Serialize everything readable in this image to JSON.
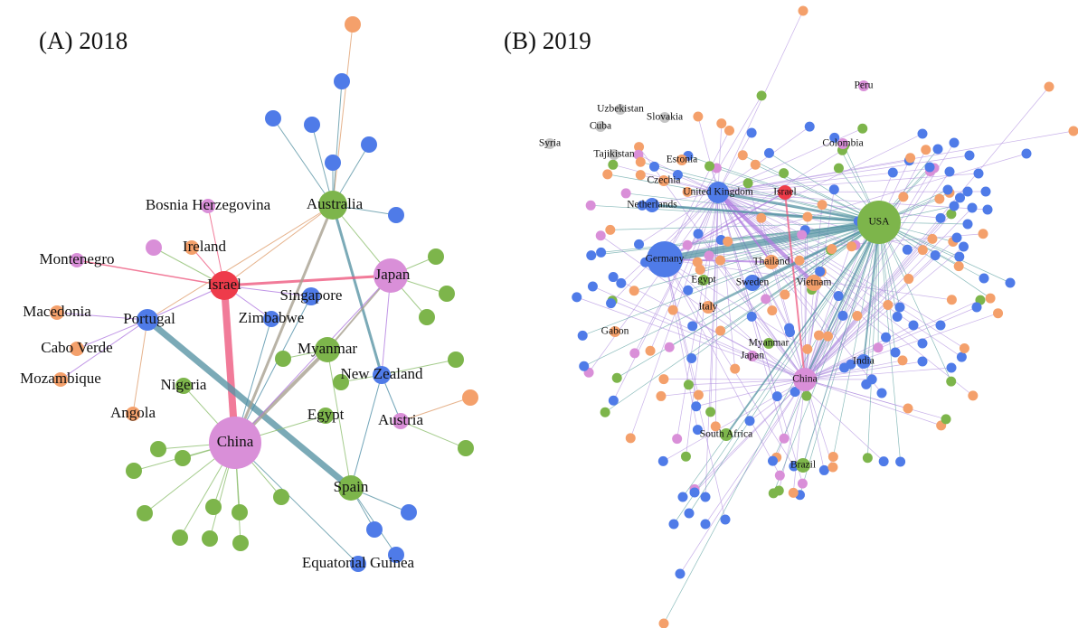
{
  "panels": [
    {
      "title": "(A) 2018",
      "nodes": [
        {
          "label": "Australia"
        },
        {
          "label": "Bosnia Herzegovina"
        },
        {
          "label": "Ireland"
        },
        {
          "label": "Montenegro"
        },
        {
          "label": "Israel"
        },
        {
          "label": "Japan"
        },
        {
          "label": "Singapore"
        },
        {
          "label": "Macedonia"
        },
        {
          "label": "Portugal"
        },
        {
          "label": "Zimbabwe"
        },
        {
          "label": "Cabo Verde"
        },
        {
          "label": "Myanmar"
        },
        {
          "label": "Mozambique"
        },
        {
          "label": "New Zealand"
        },
        {
          "label": "Nigeria"
        },
        {
          "label": "Angola"
        },
        {
          "label": "Egypt"
        },
        {
          "label": "Austria"
        },
        {
          "label": "China"
        },
        {
          "label": "Spain"
        },
        {
          "label": "Equatorial Guinea"
        }
      ]
    },
    {
      "title": "(B) 2019",
      "nodes": [
        {
          "label": "USA"
        },
        {
          "label": "Germany"
        },
        {
          "label": "United Kingdom"
        },
        {
          "label": "Israel"
        },
        {
          "label": "Netherlands"
        },
        {
          "label": "Thailand"
        },
        {
          "label": "Egypt"
        },
        {
          "label": "Sweden"
        },
        {
          "label": "Vietnam"
        },
        {
          "label": "Italy"
        },
        {
          "label": "Gabon"
        },
        {
          "label": "Myanmar"
        },
        {
          "label": "Japan"
        },
        {
          "label": "China"
        },
        {
          "label": "India"
        },
        {
          "label": "South Africa"
        },
        {
          "label": "Brazil"
        },
        {
          "label": "Peru"
        },
        {
          "label": "Uzbekistan"
        },
        {
          "label": "Cuba"
        },
        {
          "label": "Slovakia"
        },
        {
          "label": "Syria"
        },
        {
          "label": "Tajikistan"
        },
        {
          "label": "Colombia"
        },
        {
          "label": "Estonia"
        },
        {
          "label": "Czechia"
        }
      ]
    }
  ]
}
